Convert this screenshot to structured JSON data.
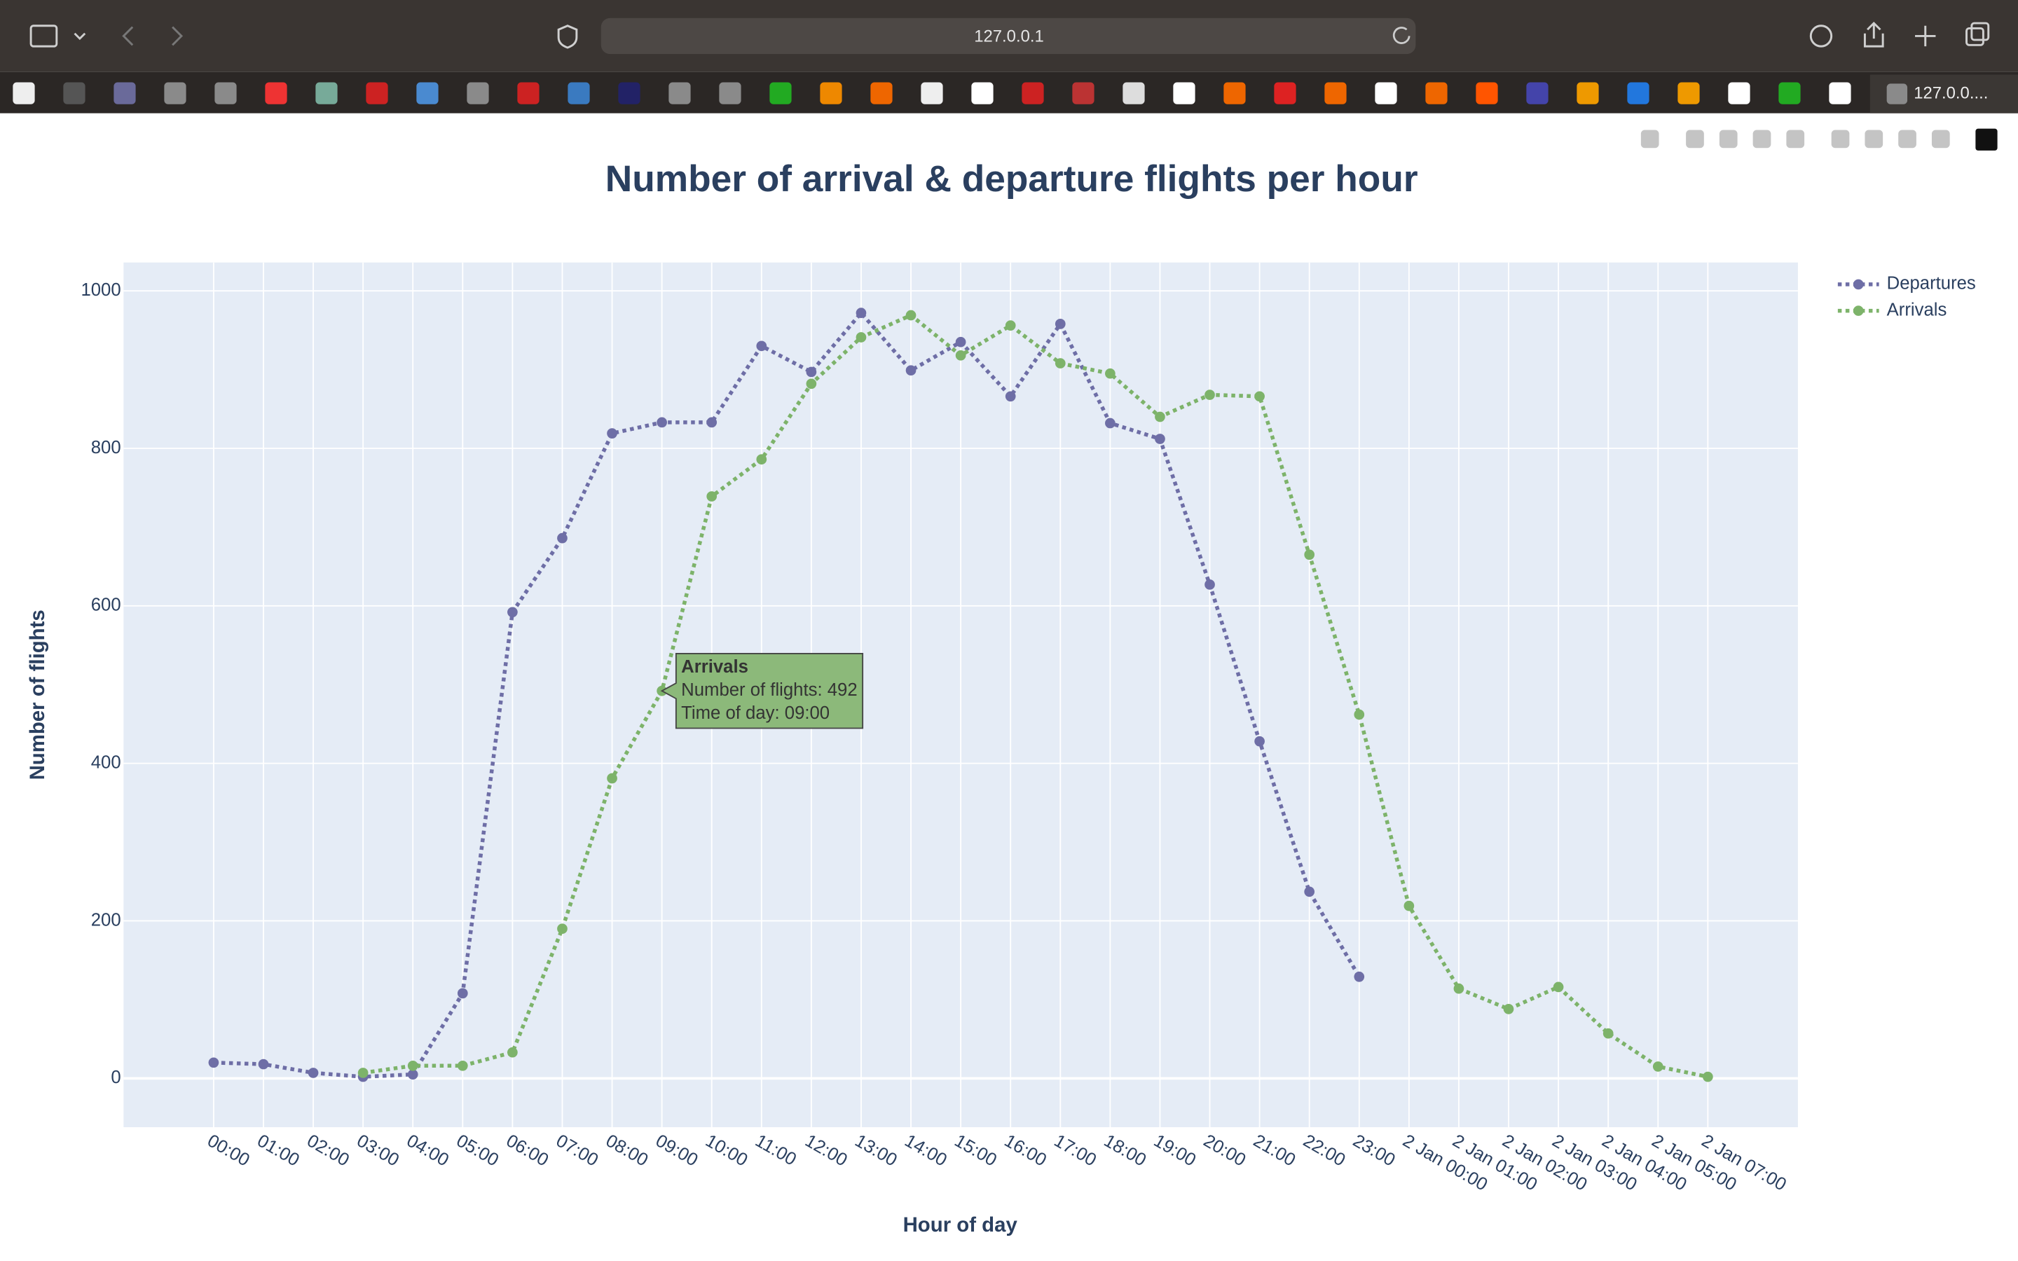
{
  "browser": {
    "url": "127.0.0.1",
    "active_tab": "127.0.0...."
  },
  "chart_data": {
    "type": "line",
    "title": "Number of arrival & departure flights per hour",
    "x_label": "Hour of day",
    "y_label": "Number of flights",
    "categories": [
      "00:00",
      "01:00",
      "02:00",
      "03:00",
      "04:00",
      "05:00",
      "06:00",
      "07:00",
      "08:00",
      "09:00",
      "10:00",
      "11:00",
      "12:00",
      "13:00",
      "14:00",
      "15:00",
      "16:00",
      "17:00",
      "18:00",
      "19:00",
      "20:00",
      "21:00",
      "22:00",
      "23:00",
      "2 Jan 00:00",
      "2 Jan 01:00",
      "2 Jan 02:00",
      "2 Jan 03:00",
      "2 Jan 04:00",
      "2 Jan 05:00",
      "2 Jan 07:00"
    ],
    "series": [
      {
        "name": "Departures",
        "color": "#6e6ea6",
        "values": [
          20,
          18,
          7,
          2,
          5,
          108,
          592,
          686,
          819,
          833,
          833,
          930,
          897,
          972,
          899,
          935,
          866,
          958,
          832,
          812,
          627,
          428,
          237,
          129,
          null,
          null,
          null,
          null,
          null,
          null,
          null
        ]
      },
      {
        "name": "Arrivals",
        "color": "#7db36a",
        "values": [
          null,
          null,
          null,
          7,
          16,
          16,
          33,
          190,
          381,
          492,
          739,
          786,
          882,
          941,
          969,
          918,
          956,
          908,
          895,
          840,
          868,
          866,
          665,
          462,
          219,
          114,
          88,
          116,
          57,
          15,
          2
        ]
      }
    ],
    "ylim": [
      -62,
      1036
    ],
    "yticks": [
      0,
      200,
      400,
      600,
      800,
      1000
    ],
    "grid": true,
    "legend": "top-right",
    "tooltip": {
      "title": "Arrivals",
      "lines": [
        "Number of flights: 492",
        "Time of day: 09:00"
      ]
    }
  }
}
